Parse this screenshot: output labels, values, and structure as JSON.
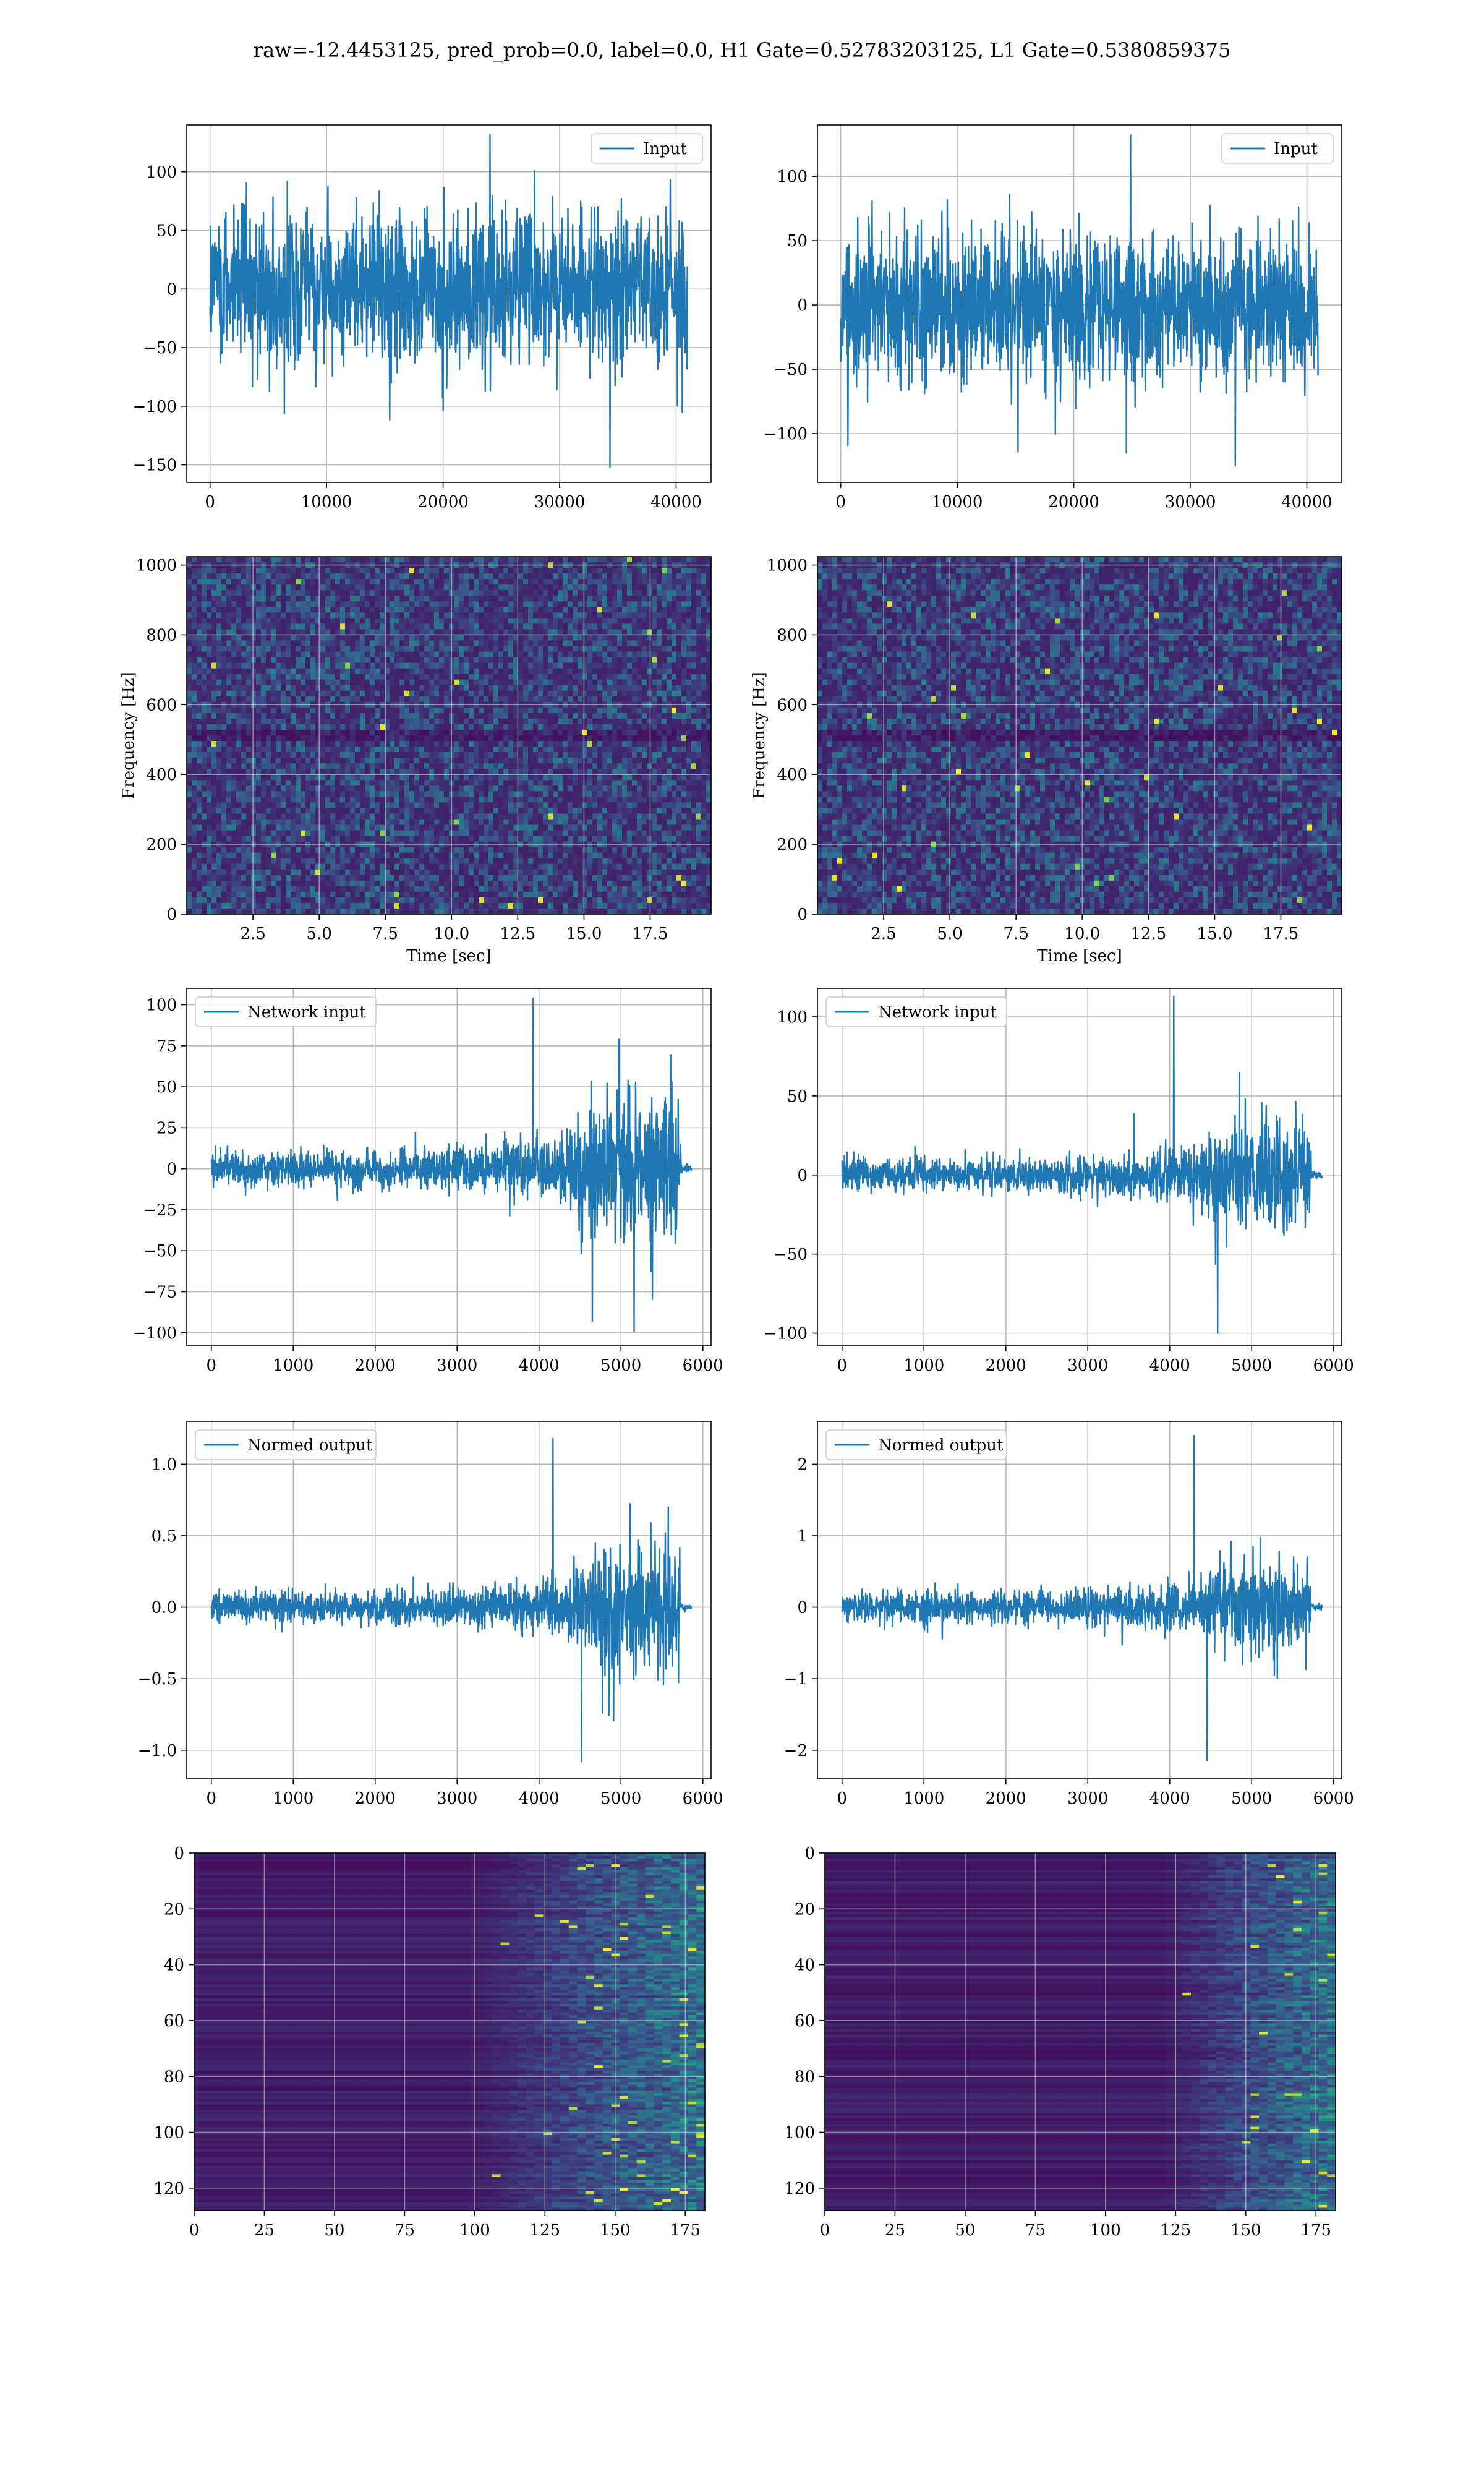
{
  "title": "raw=-12.4453125, pred_prob=0.0, label=0.0, H1 Gate=0.52783203125, L1 Gate=0.5380859375",
  "colors": {
    "line": "#1f77b4",
    "grid": "#b0b0b0",
    "viridis_dark": "#440154",
    "viridis_mid": "#21918c",
    "viridis_bright": "#fde725"
  },
  "chart_data": [
    {
      "type": "line",
      "panel": "h1-input",
      "legend": "Input",
      "legend_loc": "upper right",
      "xlim": [
        -2000,
        43000
      ],
      "ylim": [
        -165,
        140
      ],
      "xticks": [
        0,
        10000,
        20000,
        30000,
        40000
      ],
      "xtick_labels": [
        "0",
        "10000",
        "20000",
        "30000",
        "40000"
      ],
      "yticks": [
        -150,
        -100,
        -50,
        0,
        50,
        100
      ],
      "ytick_labels": [
        "−150",
        "−100",
        "−50",
        "0",
        "50",
        "100"
      ],
      "signal": {
        "x_start": 0,
        "x_end": 40960,
        "envelope": [
          [
            0,
            75
          ],
          [
            40960,
            75
          ]
        ],
        "spike_peaks": [
          132,
          -152
        ],
        "grid": true
      }
    },
    {
      "type": "line",
      "panel": "l1-input",
      "legend": "Input",
      "legend_loc": "upper right",
      "xlim": [
        -2000,
        43000
      ],
      "ylim": [
        -138,
        140
      ],
      "xticks": [
        0,
        10000,
        20000,
        30000,
        40000
      ],
      "xtick_labels": [
        "0",
        "10000",
        "20000",
        "30000",
        "40000"
      ],
      "yticks": [
        -100,
        -50,
        0,
        50,
        100
      ],
      "ytick_labels": [
        "−100",
        "−50",
        "0",
        "50",
        "100"
      ],
      "signal": {
        "x_start": 0,
        "x_end": 40960,
        "envelope": [
          [
            0,
            65
          ],
          [
            40960,
            65
          ]
        ],
        "spike_peaks": [
          132,
          -125
        ],
        "grid": true
      }
    },
    {
      "type": "heatmap",
      "panel": "h1-spectrogram",
      "xlabel": "Time [sec]",
      "ylabel": "Frequency [Hz]",
      "xlim": [
        0.0,
        19.8
      ],
      "ylim": [
        0,
        1024
      ],
      "xticks": [
        2.5,
        5.0,
        7.5,
        10.0,
        12.5,
        15.0,
        17.5
      ],
      "xtick_labels": [
        "2.5",
        "5.0",
        "7.5",
        "10.0",
        "12.5",
        "15.0",
        "17.5"
      ],
      "yticks": [
        0,
        200,
        400,
        600,
        800,
        1000
      ],
      "ytick_labels": [
        "0",
        "200",
        "400",
        "600",
        "800",
        "1000"
      ],
      "colormap": "viridis",
      "grid": true
    },
    {
      "type": "heatmap",
      "panel": "l1-spectrogram",
      "xlabel": "Time [sec]",
      "ylabel": "Frequency [Hz]",
      "xlim": [
        0.0,
        19.8
      ],
      "ylim": [
        0,
        1024
      ],
      "xticks": [
        2.5,
        5.0,
        7.5,
        10.0,
        12.5,
        15.0,
        17.5
      ],
      "xtick_labels": [
        "2.5",
        "5.0",
        "7.5",
        "10.0",
        "12.5",
        "15.0",
        "17.5"
      ],
      "yticks": [
        0,
        200,
        400,
        600,
        800,
        1000
      ],
      "ytick_labels": [
        "0",
        "200",
        "400",
        "600",
        "800",
        "1000"
      ],
      "colormap": "viridis",
      "grid": true
    },
    {
      "type": "line",
      "panel": "h1-network-input",
      "legend": "Network input",
      "legend_loc": "upper left",
      "xlim": [
        -300,
        6100
      ],
      "ylim": [
        -108,
        110
      ],
      "xticks": [
        0,
        1000,
        2000,
        3000,
        4000,
        5000,
        6000
      ],
      "xtick_labels": [
        "0",
        "1000",
        "2000",
        "3000",
        "4000",
        "5000",
        "6000"
      ],
      "yticks": [
        -100,
        -75,
        -50,
        -25,
        0,
        25,
        50,
        75,
        100
      ],
      "ytick_labels": [
        "−100",
        "−75",
        "−50",
        "−25",
        "0",
        "25",
        "50",
        "75",
        "100"
      ],
      "signal": {
        "x_start": 0,
        "x_end": 5860,
        "envelope": [
          [
            0,
            12
          ],
          [
            2500,
            13
          ],
          [
            3500,
            17
          ],
          [
            4300,
            22
          ],
          [
            4650,
            45
          ],
          [
            4900,
            60
          ],
          [
            5300,
            55
          ],
          [
            5700,
            50
          ],
          [
            5740,
            3
          ],
          [
            5860,
            2
          ]
        ],
        "spike_peaks": [
          104,
          -93
        ],
        "grid": true
      }
    },
    {
      "type": "line",
      "panel": "l1-network-input",
      "legend": "Network input",
      "legend_loc": "upper left",
      "xlim": [
        -300,
        6100
      ],
      "ylim": [
        -108,
        118
      ],
      "xticks": [
        0,
        1000,
        2000,
        3000,
        4000,
        5000,
        6000
      ],
      "xtick_labels": [
        "0",
        "1000",
        "2000",
        "3000",
        "4000",
        "5000",
        "6000"
      ],
      "yticks": [
        -100,
        -50,
        0,
        50,
        100
      ],
      "ytick_labels": [
        "−100",
        "−50",
        "0",
        "50",
        "100"
      ],
      "signal": {
        "x_start": 0,
        "x_end": 5860,
        "envelope": [
          [
            0,
            12
          ],
          [
            2500,
            12
          ],
          [
            3500,
            16
          ],
          [
            4300,
            20
          ],
          [
            4650,
            35
          ],
          [
            4900,
            45
          ],
          [
            5300,
            40
          ],
          [
            5700,
            35
          ],
          [
            5740,
            3
          ],
          [
            5860,
            2
          ]
        ],
        "spike_peaks": [
          113,
          -100
        ],
        "grid": true
      }
    },
    {
      "type": "line",
      "panel": "h1-normed-output",
      "legend": "Normed output",
      "legend_loc": "upper left",
      "xlim": [
        -300,
        6100
      ],
      "ylim": [
        -1.2,
        1.3
      ],
      "xticks": [
        0,
        1000,
        2000,
        3000,
        4000,
        5000,
        6000
      ],
      "xtick_labels": [
        "0",
        "1000",
        "2000",
        "3000",
        "4000",
        "5000",
        "6000"
      ],
      "yticks": [
        -1.0,
        -0.5,
        0.0,
        0.5,
        1.0
      ],
      "ytick_labels": [
        "−1.0",
        "−0.5",
        "0.0",
        "0.5",
        "1.0"
      ],
      "signal": {
        "x_start": 0,
        "x_end": 5860,
        "envelope": [
          [
            0,
            0.12
          ],
          [
            2500,
            0.13
          ],
          [
            3500,
            0.17
          ],
          [
            4300,
            0.22
          ],
          [
            4650,
            0.45
          ],
          [
            4900,
            0.6
          ],
          [
            5300,
            0.55
          ],
          [
            5700,
            0.5
          ],
          [
            5740,
            0.03
          ],
          [
            5860,
            0.02
          ]
        ],
        "spike_peaks": [
          1.18,
          -1.08
        ],
        "grid": true
      }
    },
    {
      "type": "line",
      "panel": "l1-normed-output",
      "legend": "Normed output",
      "legend_loc": "upper left",
      "xlim": [
        -300,
        6100
      ],
      "ylim": [
        -2.4,
        2.6
      ],
      "xticks": [
        0,
        1000,
        2000,
        3000,
        4000,
        5000,
        6000
      ],
      "xtick_labels": [
        "0",
        "1000",
        "2000",
        "3000",
        "4000",
        "5000",
        "6000"
      ],
      "yticks": [
        -2,
        -1,
        0,
        1,
        2
      ],
      "ytick_labels": [
        "−2",
        "−1",
        "0",
        "1",
        "2"
      ],
      "signal": {
        "x_start": 0,
        "x_end": 5860,
        "envelope": [
          [
            0,
            0.25
          ],
          [
            2500,
            0.25
          ],
          [
            3500,
            0.32
          ],
          [
            4300,
            0.42
          ],
          [
            4650,
            0.7
          ],
          [
            4900,
            0.95
          ],
          [
            5300,
            0.85
          ],
          [
            5700,
            0.75
          ],
          [
            5740,
            0.05
          ],
          [
            5860,
            0.04
          ]
        ],
        "spike_peaks": [
          2.4,
          -2.15
        ],
        "grid": true
      }
    },
    {
      "type": "heatmap",
      "panel": "h1-feature-map",
      "xlim": [
        0,
        182
      ],
      "ylim": [
        128,
        0
      ],
      "xticks": [
        0,
        25,
        50,
        75,
        100,
        125,
        150,
        175
      ],
      "xtick_labels": [
        "0",
        "25",
        "50",
        "75",
        "100",
        "125",
        "150",
        "175"
      ],
      "yticks": [
        0,
        20,
        40,
        60,
        80,
        100,
        120
      ],
      "ytick_labels": [
        "0",
        "20",
        "40",
        "60",
        "80",
        "100",
        "120"
      ],
      "colormap": "viridis",
      "grid": true,
      "active_from_x": 100
    },
    {
      "type": "heatmap",
      "panel": "l1-feature-map",
      "xlim": [
        0,
        182
      ],
      "ylim": [
        128,
        0
      ],
      "xticks": [
        0,
        25,
        50,
        75,
        100,
        125,
        150,
        175
      ],
      "xtick_labels": [
        "0",
        "25",
        "50",
        "75",
        "100",
        "125",
        "150",
        "175"
      ],
      "yticks": [
        0,
        20,
        40,
        60,
        80,
        100,
        120
      ],
      "ytick_labels": [
        "0",
        "20",
        "40",
        "60",
        "80",
        "100",
        "120"
      ],
      "colormap": "viridis",
      "grid": true,
      "active_from_x": 120
    }
  ]
}
